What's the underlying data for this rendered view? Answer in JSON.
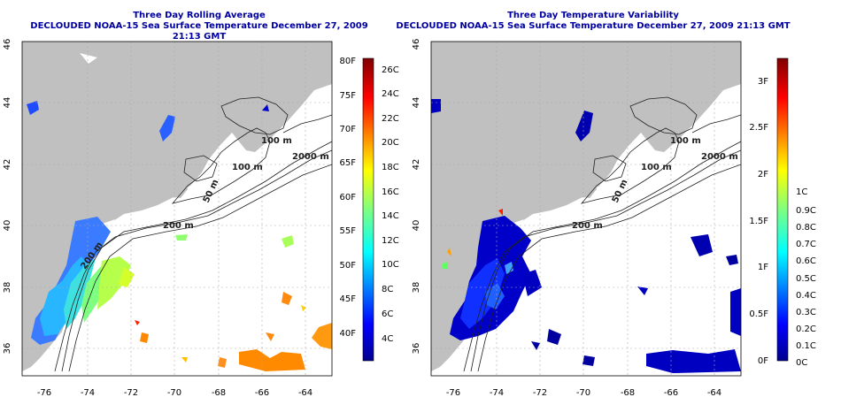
{
  "left_panel": {
    "title1": "Three Day Rolling Average",
    "title2": "DECLOUDED NOAA-15 Sea Surface Temperature December 27, 2009 21:13 GMT",
    "colorbar_f_labels": [
      "80F",
      "75F",
      "70F",
      "65F",
      "60F",
      "55F",
      "50F",
      "45F",
      "40F"
    ],
    "colorbar_c_labels": [
      "26C",
      "24C",
      "22C",
      "20C",
      "18C",
      "16C",
      "14C",
      "12C",
      "10C",
      "8C",
      "6C",
      "4C"
    ]
  },
  "right_panel": {
    "title1": "Three Day Temperature Variability",
    "title2": "DECLOUDED NOAA-15 Sea Surface Temperature December 27, 2009 21:13 GMT",
    "colorbar_f_labels": [
      "3F",
      "2.5F",
      "2F",
      "1.5F",
      "1F",
      "0.5F",
      "0F"
    ],
    "colorbar_c_labels": [
      "1C",
      "0.9C",
      "0.8C",
      "0.7C",
      "0.6C",
      "0.5C",
      "0.4C",
      "0.3C",
      "0.2C",
      "0.1C",
      "0C"
    ]
  },
  "axes": {
    "lon_ticks": [
      "-76",
      "-74",
      "-72",
      "-70",
      "-68",
      "-66",
      "-64"
    ],
    "lat_ticks": [
      "36",
      "38",
      "40",
      "42",
      "44",
      "46"
    ]
  },
  "contour_labels": [
    "100 m",
    "100 m",
    "2000 m",
    "50 m",
    "200 m",
    "200 m"
  ],
  "colors": {
    "land": "#c0c0c0",
    "ocean": "#ffffff",
    "title": "#0000a0",
    "contour": "#202020"
  }
}
